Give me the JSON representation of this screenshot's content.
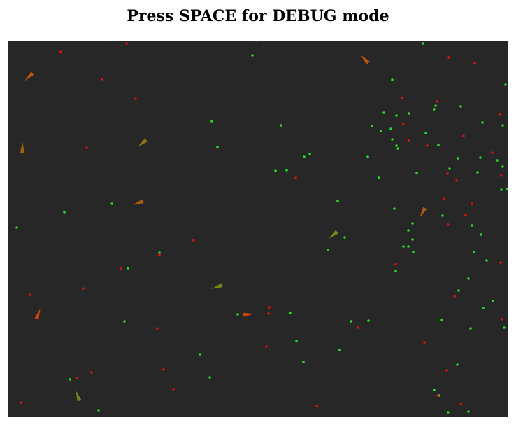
{
  "header": {
    "title": "Press SPACE for DEBUG mode"
  },
  "game": {
    "background_color": "#272727",
    "food_color": "#22dd22",
    "poison_color": "#dd1111",
    "food_count": 104,
    "poison_count": 60,
    "vehicle_count": 11,
    "vehicle_colors": [
      "#c0520f",
      "#a85e12",
      "#8a7514",
      "#6f8a14",
      "#d2410c"
    ]
  }
}
